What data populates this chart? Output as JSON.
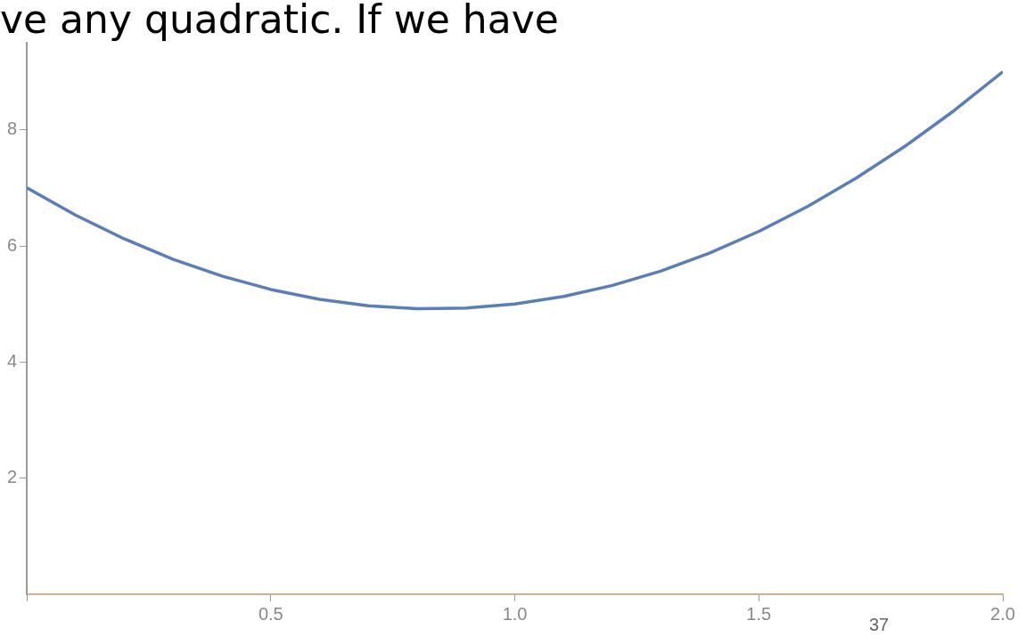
{
  "chart_data": {
    "type": "line",
    "annotations": [
      "ve any quadratic. If we have",
      "37"
    ],
    "x": [
      0,
      0.1,
      0.2,
      0.3,
      0.4,
      0.5,
      0.6,
      0.7,
      0.8,
      0.9,
      1.0,
      1.1,
      1.2,
      1.3,
      1.4,
      1.5,
      1.6,
      1.7,
      1.8,
      1.9,
      2.0
    ],
    "series": [
      {
        "color": "#5b7db8",
        "values": [
          7,
          6.53,
          6.12,
          5.77,
          5.48,
          5.25,
          5.08,
          4.97,
          4.92,
          4.93,
          5,
          5.13,
          5.32,
          5.57,
          5.88,
          6.25,
          6.68,
          7.17,
          7.72,
          8.33,
          9
        ]
      }
    ],
    "xlim": [
      0,
      2.0
    ],
    "xticks": [
      {
        "value": 0,
        "label": null
      },
      {
        "value": 0.5,
        "label": "0.5"
      },
      {
        "value": 1.0,
        "label": "1.0"
      },
      {
        "value": 1.5,
        "label": "1.5"
      },
      {
        "value": 2.0,
        "label": "2.0"
      }
    ],
    "ylim": [
      0,
      9.5
    ],
    "yticks": [
      2,
      4,
      6,
      8
    ],
    "grid": false,
    "legend": false,
    "marker": "none",
    "line_style": "solid"
  }
}
